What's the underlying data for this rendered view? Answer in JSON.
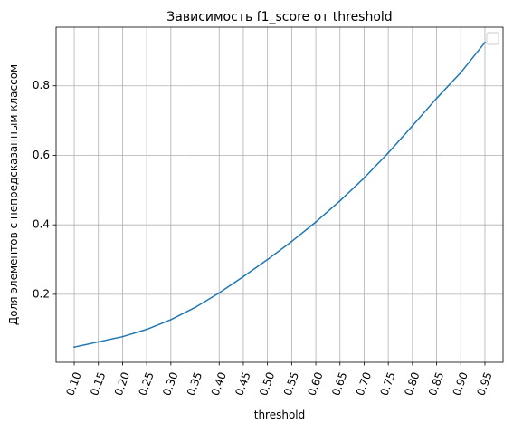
{
  "chart_data": {
    "type": "line",
    "title": "Зависимость f1_score от threshold",
    "xlabel": "threshold",
    "ylabel": "Доля элементов с непредсказанным классом",
    "x_tick_labels": [
      "0.10",
      "0.15",
      "0.20",
      "0.25",
      "0.30",
      "0.35",
      "0.40",
      "0.45",
      "0.50",
      "0.55",
      "0.60",
      "0.65",
      "0.70",
      "0.75",
      "0.80",
      "0.85",
      "0.90",
      "0.95"
    ],
    "y_tick_labels": [
      "0.2",
      "0.4",
      "0.6",
      "0.8"
    ],
    "x": [
      0.1,
      0.15,
      0.2,
      0.25,
      0.3,
      0.35,
      0.4,
      0.45,
      0.5,
      0.55,
      0.6,
      0.65,
      0.7,
      0.75,
      0.8,
      0.85,
      0.9,
      0.95
    ],
    "y_ticks": [
      0.2,
      0.4,
      0.6,
      0.8
    ],
    "series": [
      {
        "color": "#1f77b4",
        "values": [
          0.048,
          0.063,
          0.078,
          0.099,
          0.127,
          0.162,
          0.204,
          0.251,
          0.3,
          0.352,
          0.408,
          0.469,
          0.535,
          0.607,
          0.685,
          0.764,
          0.838,
          0.925
        ]
      }
    ],
    "xlim": [
      0.0625,
      0.9875
    ],
    "ylim": [
      0.0042,
      0.9688
    ],
    "grid": true,
    "legend": "top-right, empty box"
  }
}
